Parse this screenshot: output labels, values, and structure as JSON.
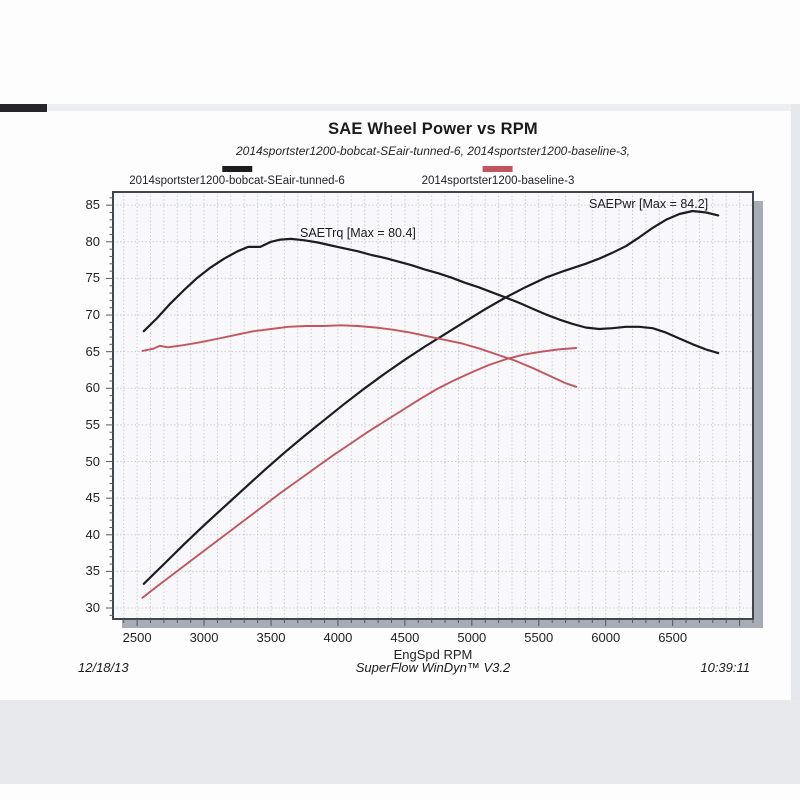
{
  "scan": {
    "date": "12/18/13",
    "software": "SuperFlow WinDyn™ V3.2",
    "time": "10:39:11"
  },
  "chart_data": {
    "type": "line",
    "title": "SAE Wheel Power vs RPM",
    "subtitle": "2014sportster1200-bobcat-SEair-tunned-6, 2014sportster1200-baseline-3,",
    "xlabel": "EngSpd RPM",
    "ylabel": "",
    "xlim": [
      2320,
      7100
    ],
    "ylim": [
      28.5,
      86.8
    ],
    "x_ticks": [
      2500,
      3000,
      3500,
      4000,
      4500,
      5000,
      5500,
      6000,
      6500
    ],
    "y_ticks": [
      30,
      35,
      40,
      45,
      50,
      55,
      60,
      65,
      70,
      75,
      80,
      85
    ],
    "grid": true,
    "grid_x_step": 100,
    "grid_y_step": 5,
    "grid_color": "#c3c6d3",
    "border_color": "#41454c",
    "legend_position": "top",
    "legend": [
      {
        "label": "2014sportster1200-bobcat-SEair-tunned-6",
        "color": "#1d1d20"
      },
      {
        "label": "2014sportster1200-baseline-3",
        "color": "#c25560"
      }
    ],
    "annotations": [
      {
        "text": "SAETrq [Max = 80.4]",
        "series": "SAETrq tuned"
      },
      {
        "text": "SAEPwr [Max = 84.2]",
        "series": "SAEPwr tuned"
      }
    ],
    "series": [
      {
        "name": "SAETrq tuned",
        "color": "#1d1d20",
        "points": [
          [
            2550,
            67.8
          ],
          [
            2650,
            69.6
          ],
          [
            2750,
            71.6
          ],
          [
            2850,
            73.4
          ],
          [
            2950,
            75.1
          ],
          [
            3050,
            76.5
          ],
          [
            3150,
            77.7
          ],
          [
            3250,
            78.7
          ],
          [
            3330,
            79.3
          ],
          [
            3420,
            79.3
          ],
          [
            3500,
            80.0
          ],
          [
            3570,
            80.3
          ],
          [
            3650,
            80.4
          ],
          [
            3750,
            80.2
          ],
          [
            3850,
            79.9
          ],
          [
            3950,
            79.5
          ],
          [
            4050,
            79.1
          ],
          [
            4150,
            78.7
          ],
          [
            4250,
            78.2
          ],
          [
            4350,
            77.8
          ],
          [
            4450,
            77.3
          ],
          [
            4550,
            76.8
          ],
          [
            4650,
            76.2
          ],
          [
            4750,
            75.7
          ],
          [
            4850,
            75.1
          ],
          [
            4950,
            74.4
          ],
          [
            5050,
            73.8
          ],
          [
            5150,
            73.1
          ],
          [
            5252,
            72.4
          ],
          [
            5350,
            71.7
          ],
          [
            5450,
            70.9
          ],
          [
            5550,
            70.1
          ],
          [
            5650,
            69.4
          ],
          [
            5750,
            68.8
          ],
          [
            5850,
            68.3
          ],
          [
            5950,
            68.1
          ],
          [
            6050,
            68.2
          ],
          [
            6150,
            68.4
          ],
          [
            6250,
            68.4
          ],
          [
            6350,
            68.2
          ],
          [
            6450,
            67.6
          ],
          [
            6550,
            66.8
          ],
          [
            6650,
            66.0
          ],
          [
            6750,
            65.3
          ],
          [
            6840,
            64.8
          ]
        ]
      },
      {
        "name": "SAEPwr tuned",
        "color": "#1d1d20",
        "points": [
          [
            2550,
            33.3
          ],
          [
            2700,
            36.0
          ],
          [
            2850,
            38.7
          ],
          [
            3000,
            41.3
          ],
          [
            3150,
            43.8
          ],
          [
            3300,
            46.3
          ],
          [
            3450,
            48.8
          ],
          [
            3600,
            51.2
          ],
          [
            3750,
            53.5
          ],
          [
            3900,
            55.7
          ],
          [
            4050,
            57.9
          ],
          [
            4200,
            60.0
          ],
          [
            4350,
            62.0
          ],
          [
            4500,
            63.9
          ],
          [
            4650,
            65.7
          ],
          [
            4800,
            67.4
          ],
          [
            4950,
            69.1
          ],
          [
            5100,
            70.8
          ],
          [
            5252,
            72.4
          ],
          [
            5400,
            73.8
          ],
          [
            5550,
            75.1
          ],
          [
            5700,
            76.1
          ],
          [
            5850,
            77.0
          ],
          [
            5950,
            77.7
          ],
          [
            6050,
            78.5
          ],
          [
            6150,
            79.4
          ],
          [
            6250,
            80.6
          ],
          [
            6350,
            81.9
          ],
          [
            6450,
            83.0
          ],
          [
            6550,
            83.8
          ],
          [
            6650,
            84.2
          ],
          [
            6750,
            84.0
          ],
          [
            6840,
            83.6
          ]
        ]
      },
      {
        "name": "SAETrq baseline",
        "color": "#c25560",
        "points": [
          [
            2540,
            65.1
          ],
          [
            2620,
            65.4
          ],
          [
            2670,
            65.8
          ],
          [
            2730,
            65.6
          ],
          [
            2850,
            65.9
          ],
          [
            2980,
            66.3
          ],
          [
            3110,
            66.8
          ],
          [
            3240,
            67.3
          ],
          [
            3370,
            67.8
          ],
          [
            3500,
            68.1
          ],
          [
            3630,
            68.4
          ],
          [
            3760,
            68.5
          ],
          [
            3890,
            68.5
          ],
          [
            4020,
            68.6
          ],
          [
            4150,
            68.5
          ],
          [
            4280,
            68.3
          ],
          [
            4410,
            68.0
          ],
          [
            4540,
            67.6
          ],
          [
            4670,
            67.1
          ],
          [
            4800,
            66.6
          ],
          [
            4930,
            66.1
          ],
          [
            5060,
            65.4
          ],
          [
            5190,
            64.6
          ],
          [
            5320,
            63.8
          ],
          [
            5450,
            62.8
          ],
          [
            5580,
            61.7
          ],
          [
            5700,
            60.7
          ],
          [
            5780,
            60.2
          ]
        ]
      },
      {
        "name": "SAEPwr baseline",
        "color": "#c25560",
        "points": [
          [
            2540,
            31.4
          ],
          [
            2660,
            33.1
          ],
          [
            2790,
            34.9
          ],
          [
            2920,
            36.7
          ],
          [
            3050,
            38.5
          ],
          [
            3180,
            40.3
          ],
          [
            3310,
            42.1
          ],
          [
            3440,
            43.9
          ],
          [
            3570,
            45.7
          ],
          [
            3700,
            47.4
          ],
          [
            3830,
            49.1
          ],
          [
            3960,
            50.8
          ],
          [
            4090,
            52.4
          ],
          [
            4220,
            54.0
          ],
          [
            4350,
            55.5
          ],
          [
            4480,
            57.0
          ],
          [
            4610,
            58.5
          ],
          [
            4740,
            59.9
          ],
          [
            4870,
            61.1
          ],
          [
            5000,
            62.2
          ],
          [
            5130,
            63.2
          ],
          [
            5260,
            64.0
          ],
          [
            5390,
            64.6
          ],
          [
            5520,
            65.0
          ],
          [
            5640,
            65.3
          ],
          [
            5780,
            65.5
          ]
        ]
      }
    ]
  }
}
